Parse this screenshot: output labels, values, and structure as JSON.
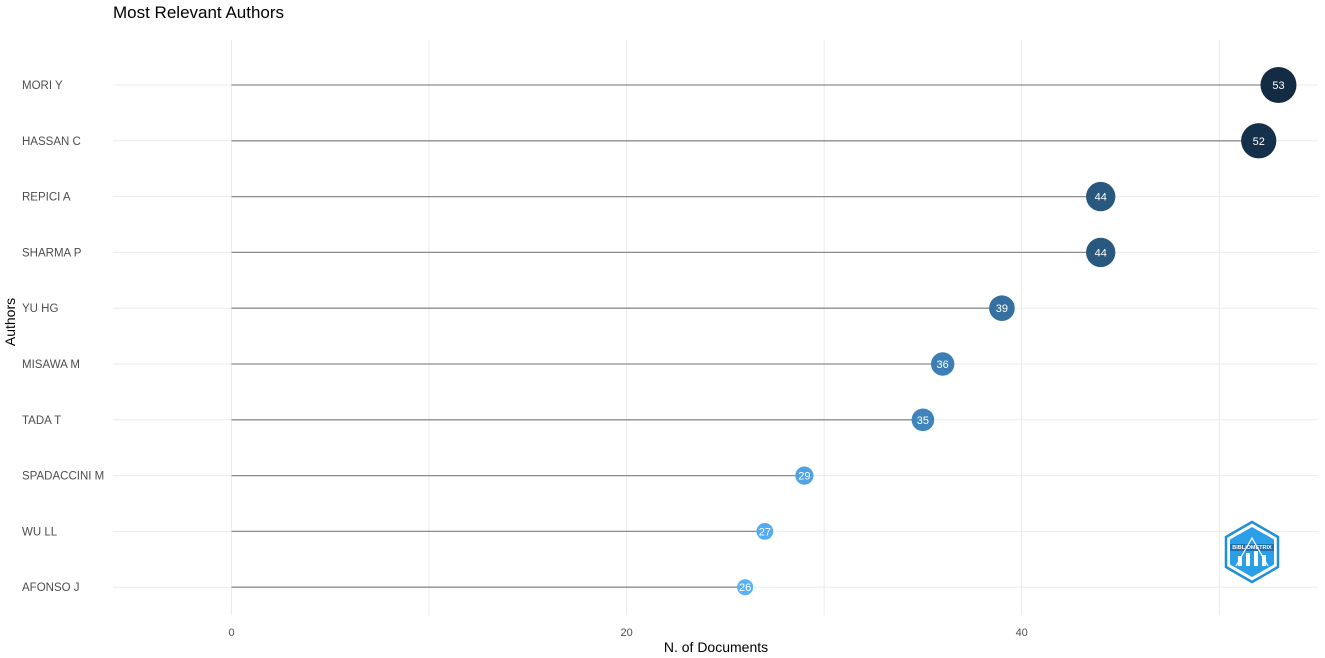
{
  "chart_data": {
    "type": "lollipop",
    "title": "Most Relevant Authors",
    "xlabel": "N. of Documents",
    "ylabel": "Authors",
    "xlim": [
      -6,
      55
    ],
    "x_ticks": [
      0,
      20,
      40
    ],
    "x_minor_ticks": [
      10,
      30,
      50
    ],
    "grid": true,
    "categories": [
      "MORI Y",
      "HASSAN C",
      "REPICI A",
      "SHARMA P",
      "YU HG",
      "MISAWA M",
      "TADA T",
      "SPADACCINI M",
      "WU LL",
      "AFONSO J"
    ],
    "values": [
      53,
      52,
      44,
      44,
      39,
      36,
      35,
      29,
      27,
      26
    ],
    "color_low": "#56B1F7",
    "color_high": "#132B43",
    "logo_text": "BIBLIOMETRIX"
  }
}
